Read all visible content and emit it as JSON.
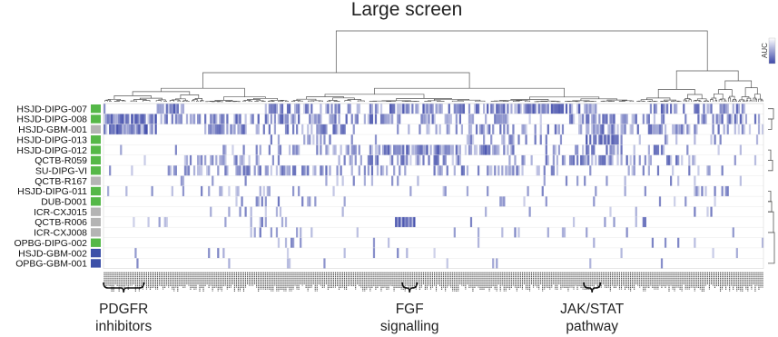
{
  "chart_data": {
    "type": "heatmap",
    "title": "Large screen",
    "colorbar": {
      "label": "AUC",
      "low_color": "#ffffff",
      "high_color": "#3b47a8"
    },
    "rows": [
      {
        "name": "HSJD-DIPG-007",
        "group_color": "#55b848"
      },
      {
        "name": "HSJD-DIPG-008",
        "group_color": "#55b848"
      },
      {
        "name": "HSJD-GBM-001",
        "group_color": "#b4b4b4"
      },
      {
        "name": "HSJD-DIPG-013",
        "group_color": "#55b848"
      },
      {
        "name": "HSJD-DIPG-012",
        "group_color": "#55b848"
      },
      {
        "name": "QCTB-R059",
        "group_color": "#55b848"
      },
      {
        "name": "SU-DIPG-VI",
        "group_color": "#55b848"
      },
      {
        "name": "QCTB-R167",
        "group_color": "#b4b4b4"
      },
      {
        "name": "HSJD-DIPG-011",
        "group_color": "#55b848"
      },
      {
        "name": "DUB-D001",
        "group_color": "#55b848"
      },
      {
        "name": "ICR-CXJ015",
        "group_color": "#b4b4b4"
      },
      {
        "name": "QCTB-R006",
        "group_color": "#b4b4b4"
      },
      {
        "name": "ICR-CXJ008",
        "group_color": "#b4b4b4"
      },
      {
        "name": "OPBG-DIPG-002",
        "group_color": "#55b848"
      },
      {
        "name": "HSJD-GBM-002",
        "group_color": "#3c50a8"
      },
      {
        "name": "OPBG-GBM-001",
        "group_color": "#3c50a8"
      }
    ],
    "columns_count": 360,
    "annotations": [
      {
        "line1": "PDGFR",
        "line2": "inhibitors",
        "col_start": 0,
        "col_end": 22
      },
      {
        "line1": "FGF",
        "line2": "signalling",
        "col_start": 163,
        "col_end": 171
      },
      {
        "line1": "JAK/STAT",
        "line2": "pathway",
        "col_start": 262,
        "col_end": 271
      }
    ]
  }
}
